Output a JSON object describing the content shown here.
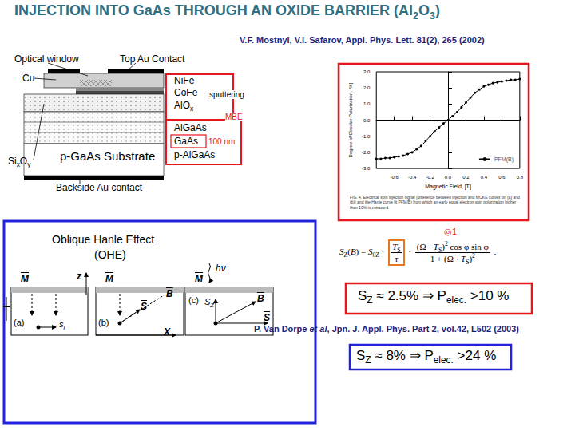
{
  "title": [
    "INJECTION INTO GaAs THROUGH AN OXIDE BARRIER (Al",
    {
      "sub": "2"
    },
    "O",
    {
      "sub": "3"
    },
    ")"
  ],
  "reference_1": "V.F. Mostnyi, V.I. Safarov, Appl. Phys. Lett. 81(2), 265 (2002)",
  "device": {
    "optical_window": "Optical window",
    "top_contact": "Top Au Contact",
    "cu": "Cu",
    "nife": "NiFe",
    "cofe": "CoFe",
    "alox": [
      "AlO",
      {
        "sub": "x"
      }
    ],
    "sixoy": [
      "Si",
      {
        "sub": "x"
      },
      "O",
      {
        "sub": "y"
      }
    ],
    "algaas": "AlGaAs",
    "gaas": "GaAs",
    "palgaas": "p-AlGaAs",
    "substrate": "p-GaAs Substrate",
    "backside": "Backside Au contact",
    "sputtering": "sputtering",
    "mbe": "MBE",
    "thickness": "100 nm"
  },
  "chart_data": {
    "type": "line",
    "x_label": "Magnetic Field, [T]",
    "y_label": "Degree of Circular Polarization, [%]",
    "x": [
      -0.8,
      -0.75,
      -0.7,
      -0.65,
      -0.6,
      -0.55,
      -0.5,
      -0.45,
      -0.4,
      -0.35,
      -0.3,
      -0.25,
      -0.2,
      -0.15,
      -0.1,
      -0.05,
      0,
      0.05,
      0.1,
      0.15,
      0.2,
      0.25,
      0.3,
      0.35,
      0.4,
      0.45,
      0.5,
      0.55,
      0.6,
      0.65,
      0.7,
      0.75,
      0.8
    ],
    "series": [
      {
        "name": "PFM(B)",
        "color": "#000000",
        "marker": "circle",
        "line_style": "solid",
        "values": [
          -2.4,
          -2.4,
          -2.35,
          -2.35,
          -2.3,
          -2.25,
          -2.2,
          -2.1,
          -2.0,
          -1.8,
          -1.6,
          -1.3,
          -1.0,
          -0.7,
          -0.45,
          -0.2,
          0.0,
          0.25,
          0.5,
          0.8,
          1.1,
          1.4,
          1.7,
          1.9,
          2.1,
          2.2,
          2.3,
          2.35,
          2.4,
          2.45,
          2.5,
          2.5,
          2.55
        ]
      }
    ],
    "xlim": [
      -0.8,
      0.8
    ],
    "xticks": [
      -0.6,
      -0.4,
      -0.2,
      {
        "value": 0,
        "label": "0.0"
      },
      0.2,
      0.4,
      0.6,
      0.8
    ],
    "ylim": [
      -3,
      3
    ],
    "yticks": [
      {
        "value": -3,
        "label": "-3.0"
      },
      {
        "value": -2,
        "label": "-2.0"
      },
      {
        "value": -1,
        "label": "-1.0"
      },
      {
        "value": 0,
        "label": "0.0"
      },
      {
        "value": 1,
        "label": "1.0"
      },
      {
        "value": 2,
        "label": "2.0"
      },
      {
        "value": 3,
        "label": "3.0"
      }
    ],
    "grid": false,
    "legend": "lower right"
  },
  "caption": "FIG. 4. Electrical spin injection signal (difference between injection and MOKE curves on (a) and (b)) and the Hanle curve fit PFM(B) from which an early equal electron spin polarization higher than 10% is extracted.",
  "equation_mark": "◎1",
  "ohe": {
    "title": "Oblique Hanle Effect",
    "subtitle": "(OHE)",
    "z": "z",
    "x": "X",
    "hv": "hν",
    "M": "M",
    "B": "B",
    "S": "S",
    "s_i": [
      "s",
      {
        "sub": "i"
      }
    ],
    "s_z": [
      "S",
      {
        "sub": "Z"
      }
    ],
    "panels": [
      "(a)",
      "(b)",
      "(c)"
    ]
  },
  "formula": {
    "lhs": [
      {
        "i": "S"
      },
      {
        "sub": "Z"
      },
      "(",
      {
        "i": "B"
      },
      ") = ",
      {
        "i": "S"
      },
      {
        "sub": "0Z"
      },
      " · "
    ],
    "frac1_num": [
      {
        "i": "T"
      },
      {
        "sub": "S"
      }
    ],
    "frac1_den": [
      {
        "i": "τ"
      }
    ],
    "mid": " · ",
    "frac2_num": [
      "(Ω · ",
      {
        "i": "T"
      },
      {
        "sub": "S"
      },
      ")",
      {
        "sup": "2"
      },
      " cos φ sin φ"
    ],
    "frac2_den": [
      "1 + (Ω · ",
      {
        "i": "T"
      },
      {
        "sub": "S"
      },
      ")",
      {
        "sup": "2"
      }
    ],
    "end": " ."
  },
  "result_1": [
    "S",
    {
      "sub": "Z"
    },
    " ≈ 2.5% ⇒ P",
    {
      "sub": "elec."
    },
    " >10 %"
  ],
  "reference_2": [
    "P. Van Dorpe ",
    {
      "i": "et al"
    },
    ", Jpn. J. Appl. Phys. Part 2, vol.42, L502 (2003)"
  ],
  "result_2": [
    "S",
    {
      "sub": "Z"
    },
    " ≈ 8% ⇒ P",
    {
      "sub": "elec."
    },
    " >24 %"
  ]
}
